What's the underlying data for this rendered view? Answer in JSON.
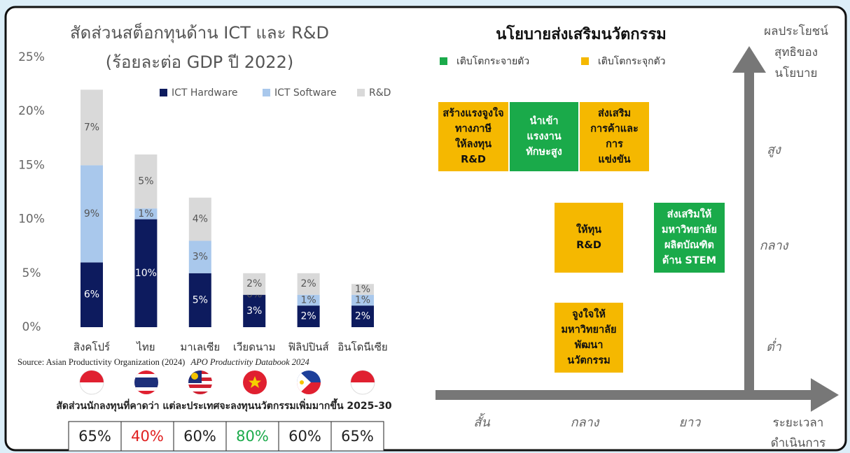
{
  "chart_data": {
    "type": "stacked_bar",
    "title": "สัดส่วนสต็อกทุนด้าน ICT และ R&D",
    "subtitle": "(ร้อยละต่อ GDP ปี 2022)",
    "categories": [
      "สิงคโปร์",
      "ไทย",
      "มาเลเซีย",
      "เวียดนาม",
      "ฟิลิปปินส์",
      "อินโดนีเซีย"
    ],
    "series": [
      {
        "name": "ICT Hardware",
        "color": "#0d1b5e",
        "values": [
          6,
          10,
          5,
          3,
          2,
          2
        ],
        "value_labels": [
          "6%",
          "10%",
          "5%",
          "3%",
          "2%",
          "2%"
        ]
      },
      {
        "name": "ICT Software",
        "color": "#a9c8ec",
        "values": [
          9,
          1,
          3,
          0,
          1,
          1
        ],
        "value_labels": [
          "9%",
          "1%",
          "3%",
          "0%",
          "1%",
          "1%"
        ]
      },
      {
        "name": "R&D",
        "color": "#d9d9d9",
        "values": [
          7,
          5,
          4,
          2,
          2,
          1
        ],
        "value_labels": [
          "7%",
          "5%",
          "4%",
          "2%",
          "2%",
          "1%"
        ]
      }
    ],
    "ylim": [
      0,
      25
    ],
    "yticks": [
      {
        "value": 0,
        "label": "0%"
      },
      {
        "value": 5,
        "label": "5%"
      },
      {
        "value": 10,
        "label": "10%"
      },
      {
        "value": 15,
        "label": "15%"
      },
      {
        "value": 20,
        "label": "20%"
      },
      {
        "value": 25,
        "label": "25%"
      }
    ],
    "grid": false,
    "legend": "top-right"
  },
  "source": {
    "text": "Source: Asian Productivity Organization (2024)",
    "italic": "APO Productivity Databook 2024"
  },
  "investor_share": {
    "title": "สัดส่วนนักลงทุนที่คาดว่า แต่ละประเทศจะลงทุนนวัตกรรมเพิ่มมากขึ้น 2025-30",
    "values": [
      "65%",
      "40%",
      "60%",
      "80%",
      "60%",
      "65%"
    ],
    "colors": [
      "#222222",
      "#e02020",
      "#222222",
      "#1aaa4a",
      "#222222",
      "#222222"
    ]
  },
  "policy": {
    "title": "นโยบายส่งเสริมนวัตกรรม",
    "legend": [
      {
        "label": "เติบโตกระจายตัว",
        "color": "#1aaa4a"
      },
      {
        "label": "เติบโตกระจุกตัว",
        "color": "#f5b800"
      }
    ],
    "y_axis_label": [
      "ผลประโยชน์",
      "สุทธิของ",
      "นโยบาย"
    ],
    "y_levels": [
      "สูง",
      "กลาง",
      "ต่ำ"
    ],
    "x_levels": [
      "สั้น",
      "กลาง",
      "ยาว"
    ],
    "x_axis_label": [
      "ระยะเวลา",
      "ดำเนินการ"
    ],
    "boxes": [
      {
        "lines": [
          "สร้างแรงจูงใจ",
          "ทางภาษี",
          "ให้ลงทุน",
          "R&D"
        ],
        "color": "#f5b800"
      },
      {
        "lines": [
          "นำเข้า",
          "แรงงาน",
          "ทักษะสูง"
        ],
        "color": "#1aaa4a"
      },
      {
        "lines": [
          "ส่งเสริม",
          "การค้าและ",
          "การ",
          "แข่งขัน"
        ],
        "color": "#f5b800"
      },
      {
        "lines": [
          "ให้ทุน",
          "R&D"
        ],
        "color": "#f5b800"
      },
      {
        "lines": [
          "ส่งเสริมให้",
          "มหาวิทยาลัย",
          "ผลิตบัณฑิต",
          "ด้าน STEM"
        ],
        "color": "#1aaa4a"
      },
      {
        "lines": [
          "จูงใจให้",
          "มหาวิทยาลัย",
          "พัฒนา",
          "นวัตกรรม"
        ],
        "color": "#f5b800"
      }
    ]
  }
}
